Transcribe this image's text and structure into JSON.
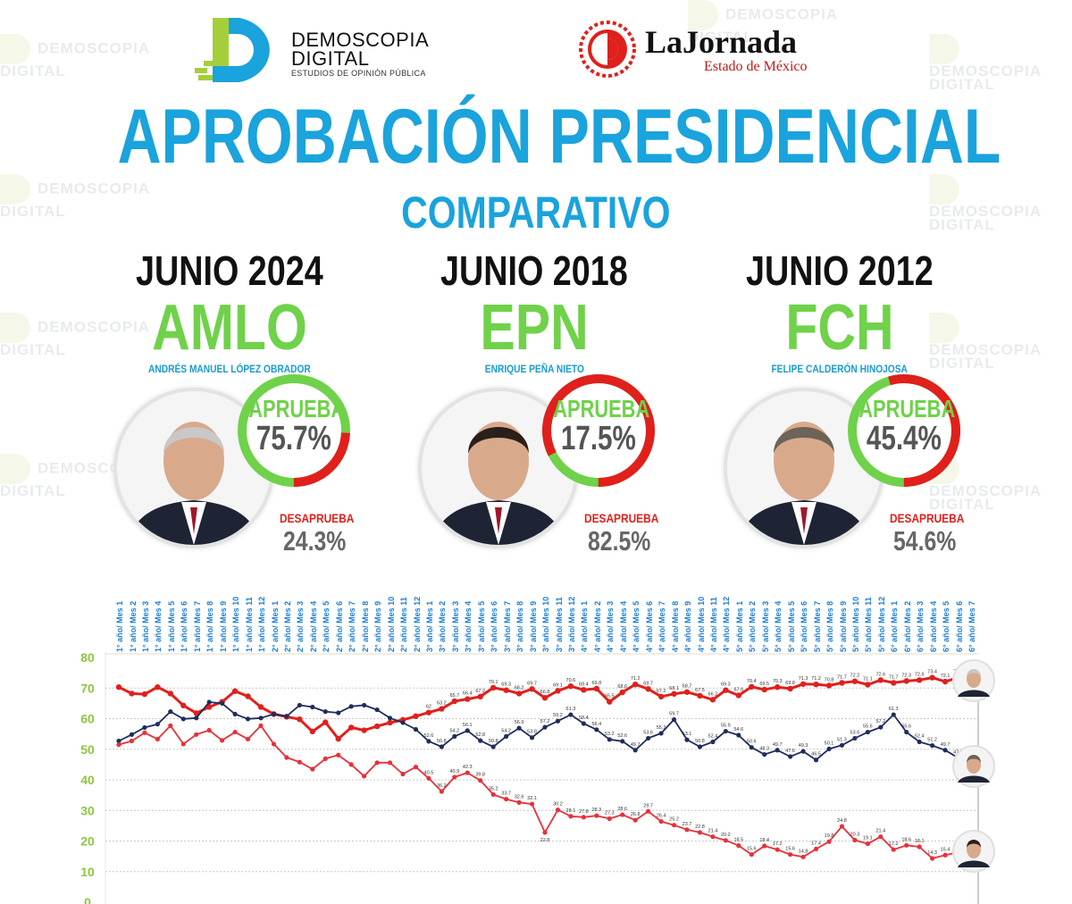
{
  "header": {
    "logo_left": {
      "line1": "DEMOSCOPIA",
      "line2": "DIGITAL",
      "tagline": "ESTUDIOS DE OPINIÓN PÚBLICA"
    },
    "logo_right": {
      "name": "LaJornada",
      "subtitle": "Estado de México"
    },
    "watermark": "DEMOSCOPIA DIGITAL",
    "title": "APROBACIÓN PRESIDENCIAL",
    "subtitle": "COMPARATIVO"
  },
  "presidents": [
    {
      "period": "JUNIO 2024",
      "abbr": "AMLO",
      "full_name": "ANDRÉS MANUEL LÓPEZ OBRADOR",
      "approve_label": "APRUEBA",
      "approve": "75.7%",
      "disapprove_label": "DESAPRUEBA",
      "disapprove": "24.3%",
      "approve_value": 75.7
    },
    {
      "period": "JUNIO 2018",
      "abbr": "EPN",
      "full_name": "ENRIQUE PEÑA NIETO",
      "approve_label": "APRUEBA",
      "approve": "17.5%",
      "disapprove_label": "DESAPRUEBA",
      "disapprove": "82.5%",
      "approve_value": 17.5
    },
    {
      "period": "JUNIO 2012",
      "abbr": "FCH",
      "full_name": "FELIPE CALDERÓN HINOJOSA",
      "approve_label": "APRUEBA",
      "approve": "45.4%",
      "disapprove_label": "DESAPRUEBA",
      "disapprove": "54.6%",
      "approve_value": 45.4
    }
  ],
  "colors": {
    "accent": "#1aa3dc",
    "approve": "#6fd24a",
    "disapprove": "#e0201c",
    "amlo_line": "#e0201c",
    "epn_line": "#e8303a",
    "fch_line": "#1f2d5c"
  },
  "chart_data": {
    "type": "line",
    "ylim": [
      0,
      80
    ],
    "yticks": [
      0,
      10,
      20,
      30,
      40,
      50,
      60,
      70,
      80
    ],
    "grid": true,
    "categories": [
      "1° año/ Mes 1",
      "1° año/ Mes 2",
      "1° año/ Mes 3",
      "1° año/ Mes 4",
      "1° año/ Mes 5",
      "1° año/ Mes 6",
      "1° año/ Mes 7",
      "1° año/ Mes 8",
      "1° año/ Mes 9",
      "1° año/ Mes 10",
      "1° año/ Mes 11",
      "1° año/ Mes 12",
      "2° año/ Mes 1",
      "2° año/ Mes 2",
      "2° año/ Mes 3",
      "2° año/ Mes 4",
      "2° año/ Mes 5",
      "2° año/ Mes 6",
      "2° año/ Mes 7",
      "2° año/ Mes 8",
      "2° año/ Mes 9",
      "2° año/ Mes 10",
      "2° año/ Mes 11",
      "2° año/ Mes 12",
      "3° año/ Mes 1",
      "3° año/ Mes 2",
      "3° año/ Mes 3",
      "3° año/ Mes 4",
      "3° año/ Mes 5",
      "3° año/ Mes 6",
      "3° año/ Mes 7",
      "3° año/ Mes 8",
      "3° año/ Mes 9",
      "3° año/ Mes 10",
      "3° año/ Mes 11",
      "3° año/ Mes 12",
      "4° año/ Mes 1",
      "4° año/ Mes 2",
      "4° año/ Mes 3",
      "4° año/ Mes 4",
      "4° año/ Mes 5",
      "4° año/ Mes 6",
      "4° año/ Mes 7",
      "4° año/ Mes 8",
      "4° año/ Mes 9",
      "4° año/ Mes 10",
      "4° año/ Mes 11",
      "4° año/ Mes 12",
      "5° año/ Mes 1",
      "5° año/ Mes 2",
      "5° año/ Mes 3",
      "5° año/ Mes 4",
      "5° año/ Mes 5",
      "5° año/ Mes 6",
      "5° año/ Mes 7",
      "5° año/ Mes 8",
      "5° año/ Mes 9",
      "5° año/ Mes 10",
      "5° año/ Mes 11",
      "5° año/ Mes 12",
      "6° año/ Mes 1",
      "6° año/ Mes 2",
      "6° año/ Mes 3",
      "6° año/ Mes 4",
      "6° año/ Mes 5",
      "6° año/ Mes 6",
      "6° año/ Mes 7"
    ],
    "series": [
      {
        "key": "amlo",
        "color": "#e0201c",
        "labeled_from": 24,
        "values": [
          70.3,
          68.2,
          68.0,
          70.3,
          68.2,
          64.3,
          61.8,
          63.8,
          65.5,
          69.0,
          67.3,
          63.8,
          61.5,
          60.6,
          59.8,
          55.8,
          58.8,
          53.4,
          57.1,
          56.2,
          57.5,
          58.7,
          59.6,
          60.8,
          62.0,
          63.2,
          65.7,
          66.4,
          67.2,
          70.1,
          69.3,
          68.2,
          69.7,
          66.8,
          69.1,
          70.6,
          69.4,
          69.8,
          65.5,
          68.6,
          71.2,
          69.7,
          67.2,
          68.1,
          68.7,
          67.5,
          66.2,
          69.3,
          67.6,
          70.4,
          69.5,
          70.3,
          69.8,
          71.3,
          71.2,
          70.8,
          71.7,
          72.2,
          71.1,
          72.6,
          71.7,
          72.3,
          72.6,
          73.4,
          72.1,
          73.4,
          75.7
        ]
      },
      {
        "key": "fch",
        "color": "#1f2d5c",
        "labeled_from": 24,
        "values": [
          52.7,
          54.8,
          57.1,
          58.2,
          62.3,
          59.9,
          60.2,
          65.4,
          65.0,
          61.5,
          59.9,
          60.2,
          61.5,
          60.8,
          64.4,
          63.8,
          62.3,
          61.9,
          64.0,
          64.4,
          62.9,
          60.2,
          58.7,
          56.5,
          52.6,
          50.8,
          54.2,
          56.1,
          52.8,
          50.8,
          54.2,
          56.9,
          53.8,
          57.2,
          59.2,
          61.3,
          58.4,
          56.4,
          53.2,
          52.6,
          49.7,
          53.6,
          55.2,
          59.7,
          53.1,
          50.8,
          52.4,
          55.9,
          54.6,
          50.6,
          48.3,
          49.7,
          47.6,
          49.3,
          46.5,
          50.1,
          51.3,
          53.6,
          55.6,
          57.2,
          61.3,
          55.6,
          52.4,
          51.2,
          49.7,
          47.2,
          45.4
        ]
      },
      {
        "key": "epn",
        "color": "#e8303a",
        "labeled_from": 24,
        "values": [
          51.5,
          52.7,
          55.4,
          53.3,
          57.7,
          51.7,
          54.8,
          56.2,
          52.9,
          55.6,
          53.3,
          57.7,
          51.7,
          47.3,
          45.8,
          43.5,
          46.9,
          48.1,
          45.0,
          41.2,
          45.6,
          45.6,
          41.9,
          44.2,
          40.5,
          36.2,
          40.9,
          42.3,
          39.8,
          35.2,
          33.7,
          32.6,
          32.1,
          22.8,
          30.2,
          28.1,
          27.8,
          28.3,
          27.3,
          28.6,
          26.8,
          29.7,
          26.4,
          25.2,
          23.7,
          22.8,
          21.4,
          20.2,
          18.5,
          15.6,
          18.4,
          17.2,
          15.6,
          14.8,
          17.4,
          19.8,
          24.8,
          20.3,
          19.1,
          21.4,
          17.2,
          18.6,
          18.1,
          14.3,
          15.4,
          16.3,
          17.5
        ]
      }
    ]
  }
}
